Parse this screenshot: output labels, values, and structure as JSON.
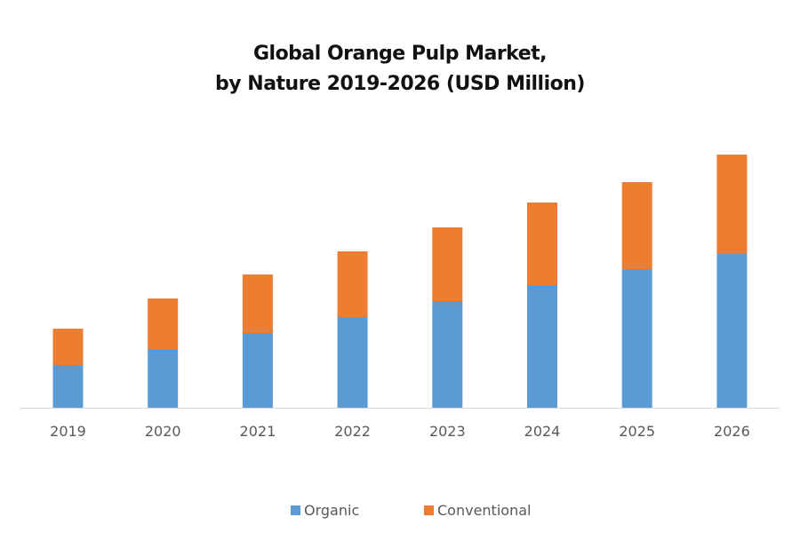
{
  "chart_data": {
    "type": "bar",
    "stacked": true,
    "title": "Global Orange Pulp Market, by Nature 2019-2026 (USD Million)",
    "title_lines": [
      "Global Orange Pulp Market,",
      "by Nature 2019-2026 (USD Million)"
    ],
    "xlabel": "",
    "ylabel": "",
    "categories": [
      "2019",
      "2020",
      "2021",
      "2022",
      "2023",
      "2024",
      "2025",
      "2026"
    ],
    "series": [
      {
        "name": "Organic",
        "color": "#5B9BD5",
        "values": [
          48,
          66,
          84,
          102,
          120,
          138,
          156,
          173
        ]
      },
      {
        "name": "Conventional",
        "color": "#ED7D31",
        "values": [
          41,
          57,
          66,
          74,
          83,
          93,
          98,
          112
        ]
      }
    ],
    "ylim": [
      0,
      300
    ],
    "y_axis_visible": false,
    "grid": false,
    "legend_position": "bottom",
    "axis_color": "#D9D9D9"
  }
}
